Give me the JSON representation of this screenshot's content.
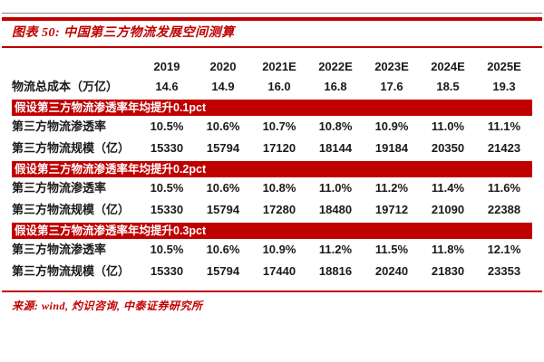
{
  "title": "图表 50: 中国第三方物流发展空间测算",
  "source": "来源: wind, 灼识咨询, 中泰证券研究所",
  "colors": {
    "accent_red": "#c00000",
    "banner_background": "#c00000",
    "banner_text": "#ffffff",
    "table_text": "#1a1a1a"
  },
  "table": {
    "years": [
      "2019",
      "2020",
      "2021E",
      "2022E",
      "2023E",
      "2024E",
      "2025E"
    ],
    "total_cost_row": {
      "label": "物流总成本（万亿）",
      "values": [
        "14.6",
        "14.9",
        "16.0",
        "16.8",
        "17.6",
        "18.5",
        "19.3"
      ]
    },
    "scenarios": [
      {
        "banner": "假设第三方物流渗透率年均提升0.1pct",
        "rows": [
          {
            "label": "第三方物流渗透率",
            "values": [
              "10.5%",
              "10.6%",
              "10.7%",
              "10.8%",
              "10.9%",
              "11.0%",
              "11.1%"
            ]
          },
          {
            "label": "第三方物流规模（亿）",
            "values": [
              "15330",
              "15794",
              "17120",
              "18144",
              "19184",
              "20350",
              "21423"
            ]
          }
        ]
      },
      {
        "banner": "假设第三方物流渗透率年均提升0.2pct",
        "rows": [
          {
            "label": "第三方物流渗透率",
            "values": [
              "10.5%",
              "10.6%",
              "10.8%",
              "11.0%",
              "11.2%",
              "11.4%",
              "11.6%"
            ]
          },
          {
            "label": "第三方物流规模（亿）",
            "values": [
              "15330",
              "15794",
              "17280",
              "18480",
              "19712",
              "21090",
              "22388"
            ]
          }
        ]
      },
      {
        "banner": "假设第三方物流渗透率年均提升0.3pct",
        "rows": [
          {
            "label": "第三方物流渗透率",
            "values": [
              "10.5%",
              "10.6%",
              "10.9%",
              "11.2%",
              "11.5%",
              "11.8%",
              "12.1%"
            ]
          },
          {
            "label": "第三方物流规模（亿）",
            "values": [
              "15330",
              "15794",
              "17440",
              "18816",
              "20240",
              "21830",
              "23353"
            ]
          }
        ]
      }
    ]
  }
}
